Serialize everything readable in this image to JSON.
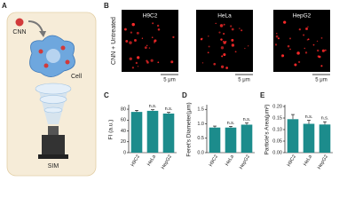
{
  "panel_labels": [
    "A",
    "B",
    "C",
    "D",
    "E"
  ],
  "panel_a": {
    "particle_label": "CNN",
    "cell_label": "Cell",
    "microscope_label": "SIM"
  },
  "panel_b": {
    "row_label": "CNN + Untreated",
    "images": [
      {
        "title": "H9C2",
        "scale_bar": "5 μm"
      },
      {
        "title": "HeLa",
        "scale_bar": "5 μm"
      },
      {
        "title": "HepG2",
        "scale_bar": "5 μm"
      }
    ]
  },
  "chart_data": [
    {
      "type": "bar",
      "ylabel": "FI (a.u.)",
      "categories": [
        "H9C2",
        "HeLa",
        "HepG2"
      ],
      "values": [
        75,
        77,
        72
      ],
      "errors": [
        3,
        2,
        2
      ],
      "annotations": [
        null,
        "n.s.",
        "n.s."
      ],
      "color": "#1c8c8c",
      "ylim": [
        0,
        85
      ],
      "yticks": [
        0,
        20,
        40,
        60,
        80
      ]
    },
    {
      "type": "bar",
      "ylabel": "Feret's Diameter(μm)",
      "categories": [
        "H9C2",
        "HeLa",
        "HepG2"
      ],
      "values": [
        0.87,
        0.87,
        0.97
      ],
      "errors": [
        0.05,
        0.04,
        0.06
      ],
      "annotations": [
        null,
        "n.s.",
        "n.s."
      ],
      "color": "#1c8c8c",
      "ylim": [
        0,
        1.6
      ],
      "yticks": [
        {
          "value": 0,
          "label": "0.0"
        },
        0.5,
        {
          "value": 1,
          "label": "1.0"
        },
        1.5
      ]
    },
    {
      "type": "bar",
      "ylabel": "Particle's Area(μm²)",
      "categories": [
        "H9C2",
        "HeLa",
        "HepG2"
      ],
      "values": [
        0.145,
        0.125,
        0.122
      ],
      "errors": [
        0.02,
        0.015,
        0.012
      ],
      "annotations": [
        null,
        "n.s.",
        "n.s."
      ],
      "color": "#1c8c8c",
      "ylim": [
        0,
        0.2
      ],
      "yticks": [
        {
          "value": 0,
          "label": "0.00"
        },
        0.05,
        {
          "value": 0.1,
          "label": "0.10"
        },
        0.15,
        {
          "value": 0.2,
          "label": "0.20"
        }
      ]
    }
  ]
}
